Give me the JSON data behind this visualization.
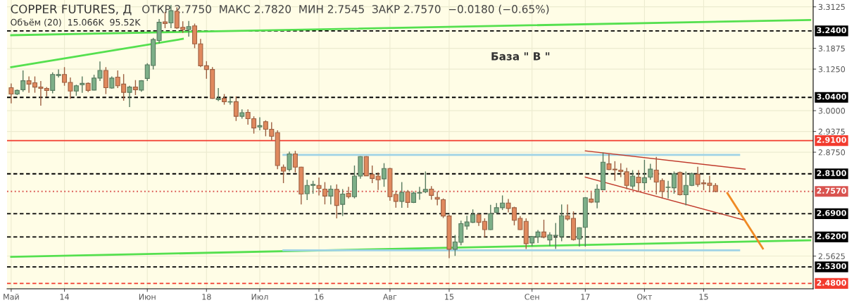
{
  "chart_data": {
    "type": "candlestick",
    "title": "COPPER FUTURES, Д",
    "subtitle": "ОТКР 2.7750  МАКС 2.7820  МИН 2.7545  ЗАКР 2.7570  −0.0180 (−0.65%)",
    "annotations": [
      "Объём (20)  15.066K  95.52K",
      "База \" В \""
    ],
    "categories": [
      "Май",
      null,
      null,
      null,
      null,
      null,
      null,
      null,
      null,
      "14",
      null,
      null,
      null,
      null,
      null,
      null,
      null,
      null,
      null,
      null,
      null,
      null,
      null,
      "Июн",
      null,
      null,
      null,
      null,
      null,
      null,
      null,
      null,
      null,
      "18",
      null,
      null,
      null,
      null,
      null,
      null,
      null,
      null,
      "Июл",
      null,
      null,
      null,
      null,
      null,
      null,
      null,
      null,
      null,
      "16",
      null,
      null,
      null,
      null,
      null,
      null,
      null,
      null,
      null,
      null,
      null,
      "Авг",
      null,
      null,
      null,
      null,
      null,
      null,
      null,
      null,
      null,
      "15",
      null,
      null,
      null,
      null,
      null,
      null,
      null,
      null,
      null,
      null,
      null,
      null,
      null,
      "Сен",
      null,
      null,
      null,
      null,
      null,
      null,
      null,
      null,
      "17",
      null,
      null,
      null,
      null,
      null,
      null,
      null,
      null,
      null,
      "Окт",
      null,
      null,
      null,
      null,
      null,
      null,
      null,
      null,
      null,
      "15",
      null,
      null,
      null,
      null,
      null,
      null,
      null,
      null,
      null,
      null,
      null,
      null,
      null,
      null,
      null,
      null,
      null,
      null
    ],
    "ohlc": [
      [
        3.069,
        3.082,
        3.022,
        3.05
      ],
      [
        3.05,
        3.064,
        3.047,
        3.061
      ],
      [
        3.063,
        3.121,
        3.057,
        3.09
      ],
      [
        3.09,
        3.103,
        3.054,
        3.08
      ],
      [
        3.084,
        3.103,
        3.054,
        3.071
      ],
      [
        3.071,
        3.089,
        3.015,
        3.067
      ],
      [
        3.067,
        3.071,
        3.043,
        3.061
      ],
      [
        3.061,
        3.115,
        3.052,
        3.109
      ],
      [
        3.106,
        3.124,
        3.1,
        3.109
      ],
      [
        3.109,
        3.131,
        3.075,
        3.085
      ],
      [
        3.085,
        3.1,
        3.036,
        3.059
      ],
      [
        3.059,
        3.078,
        3.045,
        3.075
      ],
      [
        3.078,
        3.103,
        3.054,
        3.082
      ],
      [
        3.082,
        3.085,
        3.056,
        3.061
      ],
      [
        3.062,
        3.108,
        3.061,
        3.098
      ],
      [
        3.098,
        3.148,
        3.089,
        3.121
      ],
      [
        3.121,
        3.131,
        3.05,
        3.069
      ],
      [
        3.068,
        3.103,
        3.066,
        3.098
      ],
      [
        3.101,
        3.121,
        3.068,
        3.075
      ],
      [
        3.08,
        3.11,
        3.03,
        3.055
      ],
      [
        3.055,
        3.075,
        3.011,
        3.071
      ],
      [
        3.071,
        3.092,
        3.047,
        3.063
      ],
      [
        3.062,
        3.092,
        3.057,
        3.09
      ],
      [
        3.097,
        3.143,
        3.089,
        3.138
      ],
      [
        3.136,
        3.219,
        3.124,
        3.214
      ],
      [
        3.211,
        3.276,
        3.202,
        3.266
      ],
      [
        3.267,
        3.297,
        3.248,
        3.262
      ],
      [
        3.264,
        3.318,
        3.248,
        3.301
      ],
      [
        3.299,
        3.311,
        3.246,
        3.249
      ],
      [
        3.251,
        3.269,
        3.234,
        3.244
      ],
      [
        3.244,
        3.27,
        3.223,
        3.253
      ],
      [
        3.255,
        3.262,
        3.188,
        3.201
      ],
      [
        3.201,
        3.216,
        3.131,
        3.135
      ],
      [
        3.135,
        3.149,
        3.096,
        3.124
      ],
      [
        3.124,
        3.131,
        3.036,
        3.037
      ],
      [
        3.033,
        3.068,
        3.029,
        3.037
      ],
      [
        3.037,
        3.05,
        3.018,
        3.027
      ],
      [
        3.026,
        3.043,
        3.018,
        3.027
      ],
      [
        3.027,
        3.043,
        2.969,
        2.983
      ],
      [
        2.983,
        3.004,
        2.976,
        2.994
      ],
      [
        2.995,
        3.004,
        2.958,
        2.976
      ],
      [
        2.976,
        2.983,
        2.931,
        2.948
      ],
      [
        2.951,
        2.98,
        2.941,
        2.955
      ],
      [
        2.967,
        2.971,
        2.923,
        2.944
      ],
      [
        2.944,
        2.965,
        2.91,
        2.923
      ],
      [
        2.934,
        2.941,
        2.824,
        2.835
      ],
      [
        2.83,
        2.838,
        2.782,
        2.818
      ],
      [
        2.823,
        2.877,
        2.817,
        2.87
      ],
      [
        2.87,
        2.879,
        2.814,
        2.83
      ],
      [
        2.83,
        2.831,
        2.718,
        2.749
      ],
      [
        2.75,
        2.792,
        2.731,
        2.775
      ],
      [
        2.775,
        2.789,
        2.75,
        2.778
      ],
      [
        2.775,
        2.799,
        2.745,
        2.766
      ],
      [
        2.764,
        2.785,
        2.718,
        2.743
      ],
      [
        2.743,
        2.775,
        2.718,
        2.764
      ],
      [
        2.763,
        2.778,
        2.676,
        2.715
      ],
      [
        2.718,
        2.764,
        2.683,
        2.749
      ],
      [
        2.751,
        2.771,
        2.736,
        2.741
      ],
      [
        2.741,
        2.835,
        2.736,
        2.803
      ],
      [
        2.803,
        2.863,
        2.795,
        2.862
      ],
      [
        2.862,
        2.863,
        2.803,
        2.804
      ],
      [
        2.808,
        2.835,
        2.782,
        2.796
      ],
      [
        2.803,
        2.814,
        2.761,
        2.792
      ],
      [
        2.795,
        2.842,
        2.771,
        2.826
      ],
      [
        2.826,
        2.828,
        2.729,
        2.741
      ],
      [
        2.748,
        2.759,
        2.708,
        2.727
      ],
      [
        2.727,
        2.785,
        2.708,
        2.754
      ],
      [
        2.756,
        2.761,
        2.708,
        2.724
      ],
      [
        2.724,
        2.757,
        2.722,
        2.752
      ],
      [
        2.752,
        2.771,
        2.732,
        2.754
      ],
      [
        2.756,
        2.817,
        2.752,
        2.763
      ],
      [
        2.764,
        2.773,
        2.732,
        2.745
      ],
      [
        2.739,
        2.757,
        2.715,
        2.734
      ],
      [
        2.732,
        2.736,
        2.677,
        2.683
      ],
      [
        2.683,
        2.687,
        2.556,
        2.583
      ],
      [
        2.583,
        2.626,
        2.563,
        2.605
      ],
      [
        2.604,
        2.669,
        2.595,
        2.66
      ],
      [
        2.653,
        2.684,
        2.642,
        2.665
      ],
      [
        2.664,
        2.703,
        2.662,
        2.687
      ],
      [
        2.687,
        2.691,
        2.653,
        2.664
      ],
      [
        2.667,
        2.676,
        2.619,
        2.642
      ],
      [
        2.642,
        2.717,
        2.641,
        2.69
      ],
      [
        2.694,
        2.722,
        2.69,
        2.708
      ],
      [
        2.708,
        2.745,
        2.701,
        2.722
      ],
      [
        2.722,
        2.734,
        2.694,
        2.706
      ],
      [
        2.708,
        2.711,
        2.655,
        2.67
      ],
      [
        2.676,
        2.683,
        2.641,
        2.642
      ],
      [
        2.667,
        2.676,
        2.584,
        2.6
      ],
      [
        2.602,
        2.623,
        2.592,
        2.621
      ],
      [
        2.62,
        2.641,
        2.602,
        2.635
      ],
      [
        2.635,
        2.672,
        2.616,
        2.62
      ],
      [
        2.611,
        2.634,
        2.593,
        2.626
      ],
      [
        2.624,
        2.662,
        2.584,
        2.625
      ],
      [
        2.621,
        2.718,
        2.607,
        2.684
      ],
      [
        2.684,
        2.718,
        2.669,
        2.674
      ],
      [
        2.676,
        2.697,
        2.609,
        2.612
      ],
      [
        2.614,
        2.649,
        2.591,
        2.648
      ],
      [
        2.649,
        2.74,
        2.591,
        2.738
      ],
      [
        2.734,
        2.755,
        2.722,
        2.725
      ],
      [
        2.725,
        2.778,
        2.706,
        2.764
      ],
      [
        2.762,
        2.874,
        2.761,
        2.845
      ],
      [
        2.84,
        2.87,
        2.821,
        2.823
      ],
      [
        2.824,
        2.848,
        2.789,
        2.822
      ],
      [
        2.821,
        2.842,
        2.8,
        2.817
      ],
      [
        2.816,
        2.828,
        2.764,
        2.775
      ],
      [
        2.773,
        2.821,
        2.764,
        2.803
      ],
      [
        2.8,
        2.821,
        2.757,
        2.783
      ],
      [
        2.783,
        2.852,
        2.761,
        2.798
      ],
      [
        2.8,
        2.84,
        2.792,
        2.824
      ],
      [
        2.821,
        2.861,
        2.748,
        2.785
      ],
      [
        2.79,
        2.796,
        2.736,
        2.757
      ],
      [
        2.769,
        2.789,
        2.736,
        2.77
      ],
      [
        2.768,
        2.817,
        2.75,
        2.81
      ],
      [
        2.814,
        2.817,
        2.745,
        2.747
      ],
      [
        2.747,
        2.817,
        2.715,
        2.775
      ],
      [
        2.775,
        2.814,
        2.773,
        2.81
      ],
      [
        2.809,
        2.831,
        2.771,
        2.778
      ],
      [
        2.783,
        2.792,
        2.761,
        2.78
      ],
      [
        2.782,
        2.804,
        2.755,
        2.775
      ],
      [
        2.775,
        2.782,
        2.7545,
        2.757
      ],
      null,
      null,
      null,
      null,
      null,
      null,
      null,
      null,
      null,
      null,
      null,
      null,
      null,
      null,
      null,
      null
    ],
    "colors": [
      "#e0895e",
      "#7daf88",
      "#7daf88",
      "#e0895e",
      "#e0895e",
      "#e0895e",
      "#e0895e",
      "#7daf88",
      "#7daf88",
      "#e0895e",
      "#e0895e",
      "#7daf88",
      "#7daf88",
      "#e0895e",
      "#7daf88",
      "#7daf88",
      "#e0895e",
      "#7daf88",
      "#e0895e",
      "#e0895e",
      "#7daf88",
      "#e0895e",
      "#7daf88",
      "#7daf88",
      "#7daf88",
      "#7daf88",
      "#e0895e",
      "#7daf88",
      "#e0895e",
      "#e0895e",
      "#7daf88",
      "#e0895e",
      "#e0895e",
      "#e0895e",
      "#e0895e",
      "#7daf88",
      "#e0895e",
      "#7daf88",
      "#e0895e",
      "#7daf88",
      "#e0895e",
      "#e0895e",
      "#7daf88",
      "#e0895e",
      "#e0895e",
      "#e0895e",
      "#e0895e",
      "#7daf88",
      "#e0895e",
      "#e0895e",
      "#7daf88",
      "#7daf88",
      "#e0895e",
      "#e0895e",
      "#7daf88",
      "#e0895e",
      "#7daf88",
      "#e0895e",
      "#7daf88",
      "#7daf88",
      "#e0895e",
      "#e0895e",
      "#e0895e",
      "#7daf88",
      "#e0895e",
      "#e0895e",
      "#7daf88",
      "#e0895e",
      "#7daf88",
      "#7daf88",
      "#7daf88",
      "#e0895e",
      "#e0895e",
      "#e0895e",
      "#e0895e",
      "#7daf88",
      "#7daf88",
      "#7daf88",
      "#7daf88",
      "#e0895e",
      "#e0895e",
      "#7daf88",
      "#7daf88",
      "#7daf88",
      "#e0895e",
      "#e0895e",
      "#e0895e",
      "#e0895e",
      "#7daf88",
      "#7daf88",
      "#e0895e",
      "#7daf88",
      "#7daf88",
      "#7daf88",
      "#e0895e",
      "#e0895e",
      "#7daf88",
      "#7daf88",
      "#e0895e",
      "#7daf88",
      "#7daf88",
      "#e0895e",
      "#e0895e",
      "#e0895e",
      "#e0895e",
      "#7daf88",
      "#e0895e",
      "#7daf88",
      "#7daf88",
      "#e0895e",
      "#e0895e",
      "#7daf88",
      "#7daf88",
      "#e0895e",
      "#7daf88",
      "#7daf88",
      "#e0895e",
      "#e0895e",
      "#e0895e",
      "#e0895e",
      null,
      null,
      null,
      null,
      null,
      null,
      null,
      null,
      null,
      null,
      null,
      null,
      null,
      null,
      null,
      null
    ],
    "series": [
      {
        "type": "line",
        "color": "#55e04f",
        "values": [
          3.227,
          null,
          null,
          null,
          null,
          null,
          null,
          null,
          null,
          null,
          null,
          null,
          null,
          null,
          null,
          null,
          null,
          null,
          null,
          null,
          null,
          null,
          null,
          null,
          null,
          null,
          null,
          null,
          null,
          null,
          null,
          null,
          null,
          null,
          null,
          null,
          null,
          null,
          null,
          null,
          null,
          null,
          null,
          null,
          null,
          null,
          null,
          null,
          null,
          null,
          null,
          null,
          null,
          null,
          null,
          null,
          null,
          null,
          null,
          null,
          null,
          null,
          null,
          null,
          null,
          null,
          null,
          null,
          null,
          null,
          null,
          null,
          null,
          null,
          null,
          null,
          null,
          null,
          null,
          null,
          null,
          null,
          null,
          null,
          null,
          null,
          null,
          null,
          null,
          null,
          null,
          null,
          null,
          null,
          null,
          null,
          null,
          null,
          null,
          null,
          null,
          null,
          null,
          null,
          null,
          null,
          null,
          null,
          null,
          null,
          null,
          null,
          null,
          null,
          null,
          null,
          null,
          null,
          null,
          null,
          null,
          null,
          null,
          null,
          null,
          null,
          null,
          null,
          null,
          null,
          null,
          null,
          null,
          null,
          null,
          3.273
        ]
      },
      {
        "type": "line",
        "color": "#55e04f",
        "values": [
          2.56,
          null,
          null,
          null,
          null,
          null,
          null,
          null,
          null,
          null,
          null,
          null,
          null,
          null,
          null,
          null,
          null,
          null,
          null,
          null,
          null,
          null,
          null,
          null,
          null,
          null,
          null,
          null,
          null,
          null,
          null,
          null,
          null,
          null,
          null,
          null,
          null,
          null,
          null,
          null,
          null,
          null,
          null,
          null,
          null,
          null,
          null,
          null,
          null,
          null,
          null,
          null,
          null,
          null,
          null,
          null,
          null,
          null,
          null,
          null,
          null,
          null,
          null,
          null,
          null,
          null,
          null,
          null,
          null,
          null,
          null,
          null,
          null,
          null,
          null,
          null,
          null,
          null,
          null,
          null,
          null,
          null,
          null,
          null,
          null,
          null,
          null,
          null,
          null,
          null,
          null,
          null,
          null,
          null,
          null,
          null,
          null,
          null,
          null,
          null,
          null,
          null,
          null,
          null,
          null,
          null,
          null,
          null,
          null,
          null,
          null,
          null,
          null,
          null,
          null,
          null,
          null,
          null,
          null,
          null,
          null,
          null,
          null,
          null,
          null,
          null,
          null,
          null,
          null,
          null,
          null,
          null,
          null,
          null,
          null,
          2.61
        ]
      },
      {
        "type": "line",
        "color": "#55e04f",
        "values": [
          3.131,
          null,
          null,
          null,
          null,
          null,
          null,
          null,
          null,
          null,
          null,
          null,
          null,
          null,
          null,
          null,
          null,
          null,
          null,
          null,
          null,
          null,
          null,
          null,
          null,
          null,
          null,
          null,
          null,
          3.216,
          null,
          null,
          null,
          null,
          null,
          null,
          null,
          null,
          null,
          null,
          null,
          null,
          null,
          null,
          null,
          null,
          null,
          null,
          null,
          null,
          null,
          null,
          null,
          null,
          null,
          null,
          null,
          null,
          null,
          null,
          null,
          null,
          null,
          null,
          null,
          null,
          null,
          null,
          null,
          null,
          null,
          null,
          null,
          null,
          null,
          null,
          null,
          null,
          null,
          null,
          null,
          null,
          null,
          null,
          null,
          null,
          null,
          null,
          null,
          null,
          null,
          null,
          null,
          null,
          null,
          null,
          null,
          null,
          null,
          null,
          null,
          null,
          null,
          null,
          null,
          null,
          null,
          null,
          null,
          null,
          null,
          null,
          null,
          null,
          null,
          null,
          null,
          null,
          null,
          null,
          null,
          null,
          null,
          null,
          null,
          null,
          null,
          null,
          null,
          null,
          null,
          null,
          null,
          null,
          null,
          null
        ]
      },
      {
        "type": "line",
        "color": "#9fd3e6",
        "values": [
          null,
          null,
          null,
          null,
          null,
          null,
          null,
          null,
          null,
          null,
          null,
          null,
          null,
          null,
          null,
          null,
          null,
          null,
          null,
          null,
          null,
          null,
          null,
          null,
          null,
          null,
          null,
          null,
          null,
          null,
          null,
          null,
          null,
          null,
          null,
          null,
          null,
          null,
          null,
          null,
          null,
          null,
          null,
          null,
          null,
          null,
          2.867,
          null,
          null,
          null,
          null,
          null,
          null,
          null,
          null,
          null,
          null,
          null,
          null,
          null,
          null,
          null,
          null,
          null,
          null,
          null,
          null,
          null,
          null,
          null,
          null,
          null,
          null,
          null,
          null,
          null,
          null,
          null,
          null,
          null,
          null,
          null,
          null,
          null,
          null,
          null,
          null,
          null,
          null,
          null,
          null,
          null,
          null,
          null,
          null,
          null,
          null,
          null,
          null,
          null,
          null,
          null,
          null,
          null,
          null,
          null,
          null,
          null,
          null,
          null,
          null,
          null,
          null,
          null,
          null,
          null,
          null,
          null,
          null,
          null,
          null,
          null,
          null,
          2.867,
          null,
          null,
          null,
          null,
          null,
          null,
          null,
          null,
          null,
          null,
          null,
          null
        ]
      },
      {
        "type": "line",
        "color": "#9fd3e6",
        "values": [
          null,
          null,
          null,
          null,
          null,
          null,
          null,
          null,
          null,
          null,
          null,
          null,
          null,
          null,
          null,
          null,
          null,
          null,
          null,
          null,
          null,
          null,
          null,
          null,
          null,
          null,
          null,
          null,
          null,
          null,
          null,
          null,
          null,
          null,
          null,
          null,
          null,
          null,
          null,
          null,
          null,
          null,
          null,
          null,
          null,
          null,
          2.58,
          null,
          null,
          null,
          null,
          null,
          null,
          null,
          null,
          null,
          null,
          null,
          null,
          null,
          null,
          null,
          null,
          null,
          null,
          null,
          null,
          null,
          null,
          null,
          null,
          null,
          null,
          null,
          null,
          null,
          null,
          null,
          null,
          null,
          null,
          null,
          null,
          null,
          null,
          null,
          null,
          null,
          null,
          null,
          null,
          null,
          null,
          null,
          null,
          null,
          null,
          null,
          null,
          null,
          null,
          null,
          null,
          null,
          null,
          null,
          null,
          null,
          null,
          null,
          null,
          null,
          null,
          null,
          null,
          null,
          null,
          null,
          null,
          null,
          null,
          null,
          null,
          2.58,
          null,
          null,
          null,
          null,
          null,
          null,
          null,
          null,
          null,
          null,
          null,
          null
        ]
      },
      {
        "type": "line",
        "color": "#c0392b",
        "values": [
          null,
          null,
          null,
          null,
          null,
          null,
          null,
          null,
          null,
          null,
          null,
          null,
          null,
          null,
          null,
          null,
          null,
          null,
          null,
          null,
          null,
          null,
          null,
          null,
          null,
          null,
          null,
          null,
          null,
          null,
          null,
          null,
          null,
          null,
          null,
          null,
          null,
          null,
          null,
          null,
          null,
          null,
          null,
          null,
          null,
          null,
          null,
          null,
          null,
          null,
          null,
          null,
          null,
          null,
          null,
          null,
          null,
          null,
          null,
          null,
          null,
          null,
          null,
          null,
          null,
          null,
          null,
          null,
          null,
          null,
          null,
          null,
          null,
          null,
          null,
          null,
          null,
          null,
          null,
          null,
          null,
          null,
          null,
          null,
          null,
          null,
          null,
          null,
          null,
          null,
          null,
          null,
          null,
          null,
          null,
          null,
          null,
          2.879,
          null,
          null,
          null,
          null,
          null,
          null,
          null,
          null,
          null,
          null,
          null,
          null,
          null,
          null,
          null,
          null,
          null,
          null,
          null,
          null,
          null,
          null,
          null,
          null,
          null,
          null,
          2.824,
          null,
          null,
          null,
          null,
          null,
          null,
          null,
          null,
          null,
          null,
          null
        ]
      },
      {
        "type": "line",
        "color": "#c0392b",
        "values": [
          null,
          null,
          null,
          null,
          null,
          null,
          null,
          null,
          null,
          null,
          null,
          null,
          null,
          null,
          null,
          null,
          null,
          null,
          null,
          null,
          null,
          null,
          null,
          null,
          null,
          null,
          null,
          null,
          null,
          null,
          null,
          null,
          null,
          null,
          null,
          null,
          null,
          null,
          null,
          null,
          null,
          null,
          null,
          null,
          null,
          null,
          null,
          null,
          null,
          null,
          null,
          null,
          null,
          null,
          null,
          null,
          null,
          null,
          null,
          null,
          null,
          null,
          null,
          null,
          null,
          null,
          null,
          null,
          null,
          null,
          null,
          null,
          null,
          null,
          null,
          null,
          null,
          null,
          null,
          null,
          null,
          null,
          null,
          null,
          null,
          null,
          null,
          null,
          null,
          null,
          null,
          null,
          null,
          null,
          null,
          null,
          null,
          2.8,
          null,
          null,
          null,
          null,
          null,
          null,
          null,
          null,
          null,
          null,
          null,
          null,
          null,
          null,
          null,
          null,
          null,
          null,
          null,
          null,
          null,
          null,
          null,
          null,
          null,
          null,
          2.67,
          null,
          null,
          null,
          null,
          null,
          null,
          null,
          null,
          null,
          null,
          null
        ]
      },
      {
        "type": "line",
        "color": "#f08a24",
        "values": [
          null,
          null,
          null,
          null,
          null,
          null,
          null,
          null,
          null,
          null,
          null,
          null,
          null,
          null,
          null,
          null,
          null,
          null,
          null,
          null,
          null,
          null,
          null,
          null,
          null,
          null,
          null,
          null,
          null,
          null,
          null,
          null,
          null,
          null,
          null,
          null,
          null,
          null,
          null,
          null,
          null,
          null,
          null,
          null,
          null,
          null,
          null,
          null,
          null,
          null,
          null,
          null,
          null,
          null,
          null,
          null,
          null,
          null,
          null,
          null,
          null,
          null,
          null,
          null,
          null,
          null,
          null,
          null,
          null,
          null,
          null,
          null,
          null,
          null,
          null,
          null,
          null,
          null,
          null,
          null,
          null,
          null,
          null,
          null,
          null,
          null,
          null,
          null,
          null,
          null,
          null,
          null,
          null,
          null,
          null,
          null,
          null,
          null,
          null,
          null,
          null,
          null,
          null,
          null,
          null,
          null,
          null,
          null,
          null,
          null,
          null,
          null,
          null,
          null,
          null,
          null,
          null,
          null,
          null,
          null,
          null,
          2.752,
          null,
          null,
          null,
          null,
          null,
          2.585,
          null,
          null,
          null,
          null,
          null,
          null,
          null,
          null
        ]
      }
    ],
    "ylim": [
      2.464,
      3.333
    ],
    "yticks": [
      {
        "value": 2.5625,
        "label": "2.5625"
      },
      {
        "value": 2.875,
        "label": "2.8750"
      },
      {
        "value": 2.9375,
        "label": "2.9375"
      },
      {
        "value": 3.0,
        "label": "3.0000"
      },
      {
        "value": 3.125,
        "label": "3.1250"
      },
      {
        "value": 3.1875,
        "label": "3.1875"
      },
      {
        "value": 3.3125,
        "label": "3.3125"
      }
    ],
    "ref_lines": [
      {
        "axis": "y",
        "value": 3.24,
        "label": "3.2400",
        "color": "#000000",
        "line_style": "dashed"
      },
      {
        "axis": "y",
        "value": 3.04,
        "label": "3.0400",
        "color": "#000000",
        "line_style": "dashed"
      },
      {
        "axis": "y",
        "value": 2.91,
        "label": "2.9100",
        "color": "#f23b2e",
        "line_style": "solid"
      },
      {
        "axis": "y",
        "value": 2.81,
        "label": "2.8100",
        "color": "#000000",
        "line_style": "dashed"
      },
      {
        "axis": "y",
        "value": 2.757,
        "label": "2.7570",
        "color": "#d9534f",
        "line_style": "dotted"
      },
      {
        "axis": "y",
        "value": 2.69,
        "label": "2.6900",
        "color": "#000000",
        "line_style": "dashed"
      },
      {
        "axis": "y",
        "value": 2.62,
        "label": "2.6200",
        "color": "#000000",
        "line_style": "dashed"
      },
      {
        "axis": "y",
        "value": 2.53,
        "label": "2.5300",
        "color": "#000000",
        "line_style": "dashed"
      },
      {
        "axis": "y",
        "value": 2.48,
        "label": "2.4800",
        "color": "#f23b2e",
        "line_style": "dashed"
      }
    ],
    "grid": true
  }
}
